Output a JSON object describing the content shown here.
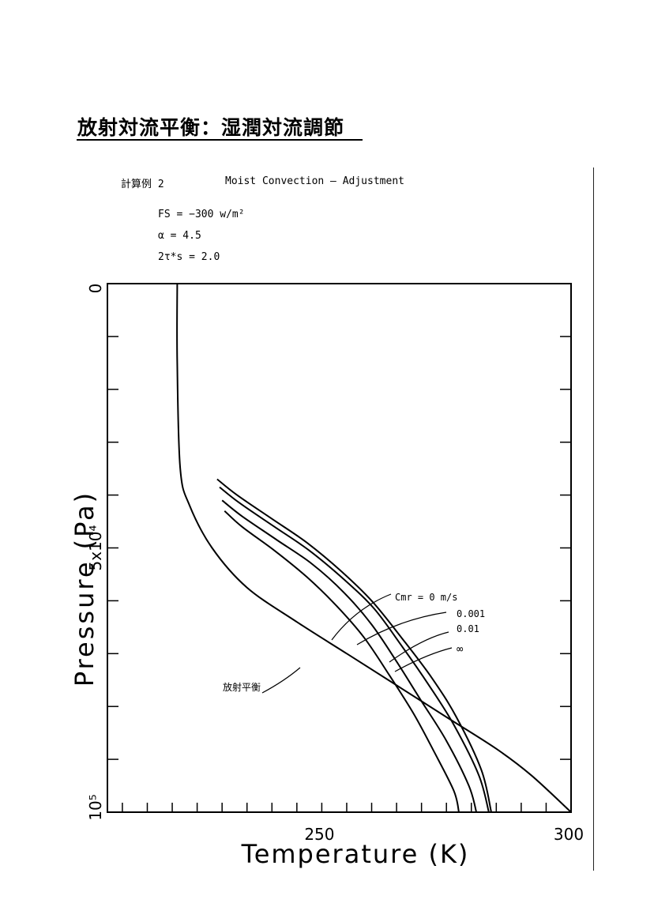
{
  "header": {
    "title": "放射対流平衡：湿潤対流調節"
  },
  "notes": {
    "calc_label": "計算例 2",
    "calc_title": "Moist Convection — Adjustment",
    "params": [
      "FS = −300 w/m²",
      "α = 4.5",
      "2τ*s = 2.0"
    ]
  },
  "chart_data": {
    "type": "line",
    "xlabel": "Temperature (K)",
    "ylabel": "Pressure (Pa)",
    "xlim": [
      207,
      300
    ],
    "ylim": [
      0,
      100000
    ],
    "y_inverted": true,
    "x_ticks": [
      250,
      300
    ],
    "y_tick_labels": [
      {
        "value": 0,
        "label": "0"
      },
      {
        "value": 50000,
        "label": "5x10⁴"
      },
      {
        "value": 100000,
        "label": "10⁵"
      }
    ],
    "y_minor_step": 10000,
    "x_minor_step": 5,
    "grid": false,
    "legend_title": "Cmr = 0   m/s",
    "series": [
      {
        "name": "放射平衡",
        "x": [
          221,
          221,
          221.6,
          223.5,
          228,
          235,
          245,
          255,
          265,
          275,
          285,
          292,
          300
        ],
        "y": [
          0,
          15000,
          35000,
          42000,
          50000,
          57500,
          64000,
          70000,
          76000,
          82000,
          88000,
          93000,
          100000
        ]
      },
      {
        "name": "0",
        "x": [
          229,
          233,
          240,
          247,
          254,
          260,
          266,
          272,
          277,
          282,
          284
        ],
        "y": [
          37000,
          40000,
          44500,
          49000,
          54500,
          60000,
          67000,
          74500,
          82000,
          92000,
          100000
        ]
      },
      {
        "name": "0.001",
        "x": [
          229.5,
          233.5,
          240.5,
          247.5,
          254.5,
          260.5,
          266,
          271.5,
          276.5,
          281.5,
          283.5
        ],
        "y": [
          38500,
          41500,
          46000,
          50500,
          56000,
          61500,
          68500,
          76000,
          83500,
          93000,
          100000
        ]
      },
      {
        "name": "0.01",
        "x": [
          230,
          234,
          241,
          248,
          254.5,
          260,
          265,
          270,
          275,
          279.5,
          281
        ],
        "y": [
          41000,
          44000,
          48500,
          53000,
          58500,
          64500,
          71500,
          79000,
          86500,
          95000,
          100000
        ]
      },
      {
        "name": "∞",
        "x": [
          230.5,
          234,
          240.5,
          247,
          253,
          258.5,
          263.5,
          268.5,
          272.5,
          276.5,
          277.5
        ],
        "y": [
          43000,
          46000,
          50500,
          55500,
          61000,
          67000,
          74000,
          81500,
          88500,
          96000,
          100000
        ]
      }
    ],
    "annotations": [
      {
        "text": "放射平衡",
        "target": "放射平衡"
      },
      {
        "text": "Cmr = 0   m/s",
        "target": "0"
      },
      {
        "text": "0.001",
        "target": "0.001"
      },
      {
        "text": "0.01",
        "target": "0.01"
      },
      {
        "text": "∞",
        "target": "∞"
      }
    ]
  }
}
